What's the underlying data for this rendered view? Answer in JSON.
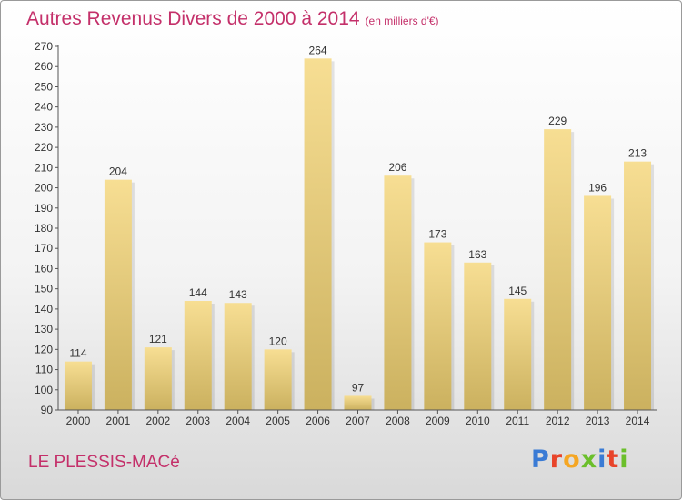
{
  "header": {
    "title": "Autres Revenus Divers de 2000 à 2014",
    "unit": "(en milliers d'€)"
  },
  "footer": {
    "location": "LE PLESSIS-MACé",
    "logo": {
      "text": "Proxiti",
      "colors": [
        "#3a7bd5",
        "#e8442a",
        "#f5a623",
        "#6bbf2b",
        "#3a7bd5",
        "#e8442a",
        "#6bbf2b"
      ]
    }
  },
  "chart_data": {
    "type": "bar",
    "title": "Autres Revenus Divers de 2000 à 2014",
    "xlabel": "",
    "ylabel": "",
    "categories": [
      "2000",
      "2001",
      "2002",
      "2003",
      "2004",
      "2005",
      "2006",
      "2007",
      "2008",
      "2009",
      "2010",
      "2011",
      "2012",
      "2013",
      "2014"
    ],
    "values": [
      114,
      204,
      121,
      144,
      143,
      120,
      264,
      97,
      206,
      173,
      163,
      145,
      229,
      196,
      213
    ],
    "ylim": [
      90,
      270
    ],
    "ytick_step": 10,
    "grid": false,
    "legend": "none",
    "bar_color_top": "#f7de93",
    "bar_color_bottom": "#cbb15f",
    "label_color": "#333333"
  }
}
